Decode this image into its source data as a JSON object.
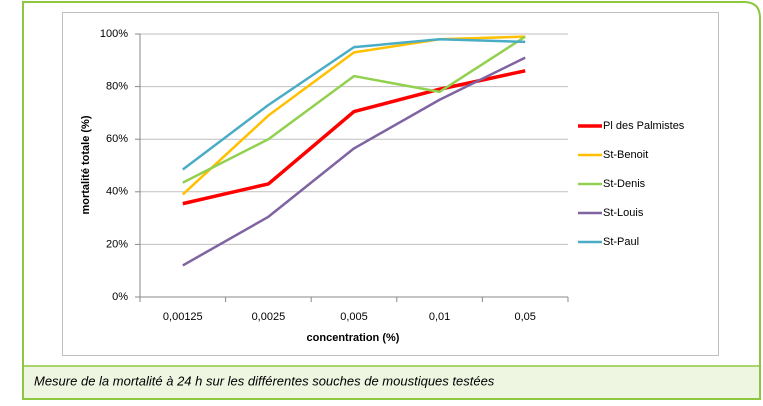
{
  "chart_data": {
    "type": "line",
    "ylabel": "mortalité totale (%)",
    "xlabel": "concentration (%)",
    "caption": "Mesure de la mortalité à 24 h sur les différentes souches de moustiques testées",
    "categories": [
      "0,00125",
      "0,0025",
      "0,005",
      "0,01",
      "0,05"
    ],
    "series": [
      {
        "name": "Pl des Palmistes",
        "color": "#ff0000",
        "values": [
          35.5,
          43,
          70.5,
          79,
          86
        ]
      },
      {
        "name": "St-Benoit",
        "color": "#ffc000",
        "values": [
          39,
          69,
          93,
          98,
          99
        ]
      },
      {
        "name": "St-Denis",
        "color": "#92d050",
        "values": [
          43.5,
          60,
          84,
          78,
          99
        ]
      },
      {
        "name": "St-Louis",
        "color": "#8064a2",
        "values": [
          12,
          30.5,
          56.5,
          75,
          91
        ]
      },
      {
        "name": "St-Paul",
        "color": "#4bacc6",
        "values": [
          48.5,
          73,
          95,
          98,
          97
        ]
      }
    ],
    "ylim": [
      0,
      100
    ],
    "yticks": [
      {
        "value": 0,
        "label": "0%"
      },
      {
        "value": 20,
        "label": "20%"
      },
      {
        "value": 40,
        "label": "40%"
      },
      {
        "value": 60,
        "label": "60%"
      },
      {
        "value": 80,
        "label": "80%"
      },
      {
        "value": 100,
        "label": "100%"
      }
    ],
    "grid": true,
    "legend": "right"
  }
}
